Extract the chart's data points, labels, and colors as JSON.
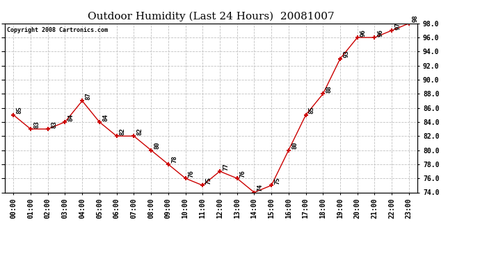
{
  "title": "Outdoor Humidity (Last 24 Hours)  20081007",
  "copyright_text": "Copyright 2008 Cartronics.com",
  "x_labels": [
    "00:00",
    "01:00",
    "02:00",
    "03:00",
    "04:00",
    "05:00",
    "06:00",
    "07:00",
    "08:00",
    "09:00",
    "10:00",
    "11:00",
    "12:00",
    "13:00",
    "14:00",
    "15:00",
    "16:00",
    "17:00",
    "18:00",
    "19:00",
    "20:00",
    "21:00",
    "22:00",
    "23:00"
  ],
  "y_values": [
    85,
    83,
    83,
    84,
    87,
    84,
    82,
    82,
    80,
    78,
    76,
    75,
    77,
    76,
    74,
    75,
    80,
    85,
    88,
    93,
    96,
    96,
    97,
    98
  ],
  "line_color": "#cc0000",
  "marker_color": "#cc0000",
  "background_color": "#ffffff",
  "grid_color": "#c0c0c0",
  "ylim_min": 74.0,
  "ylim_max": 98.0,
  "ytick_step": 2.0,
  "title_fontsize": 11,
  "label_fontsize": 7,
  "annotation_fontsize": 6.5,
  "copyright_fontsize": 6
}
